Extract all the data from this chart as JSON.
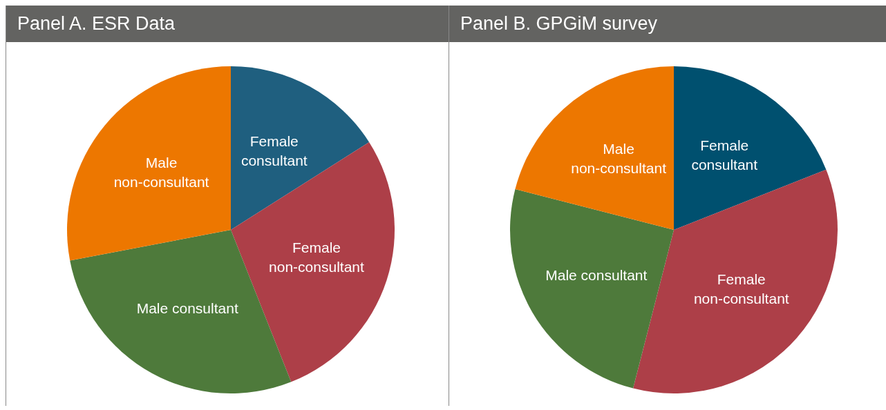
{
  "chart_data": [
    {
      "type": "pie",
      "title": "Panel A. ESR Data",
      "categories": [
        "Female consultant",
        "Female non-consultant",
        "Male consultant",
        "Male non-consultant"
      ],
      "values": [
        16,
        28,
        28,
        28
      ],
      "colors": [
        "#1f5f7f",
        "#ad3f48",
        "#4e7a3b",
        "#ed7700"
      ]
    },
    {
      "type": "pie",
      "title": "Panel B. GPGiM survey",
      "categories": [
        "Female consultant",
        "Female non-consultant",
        "Male consultant",
        "Male non-consultant"
      ],
      "values": [
        19,
        35,
        25,
        21
      ],
      "colors": [
        "#00506f",
        "#ad3f48",
        "#4e7a3b",
        "#ed7700"
      ]
    }
  ]
}
